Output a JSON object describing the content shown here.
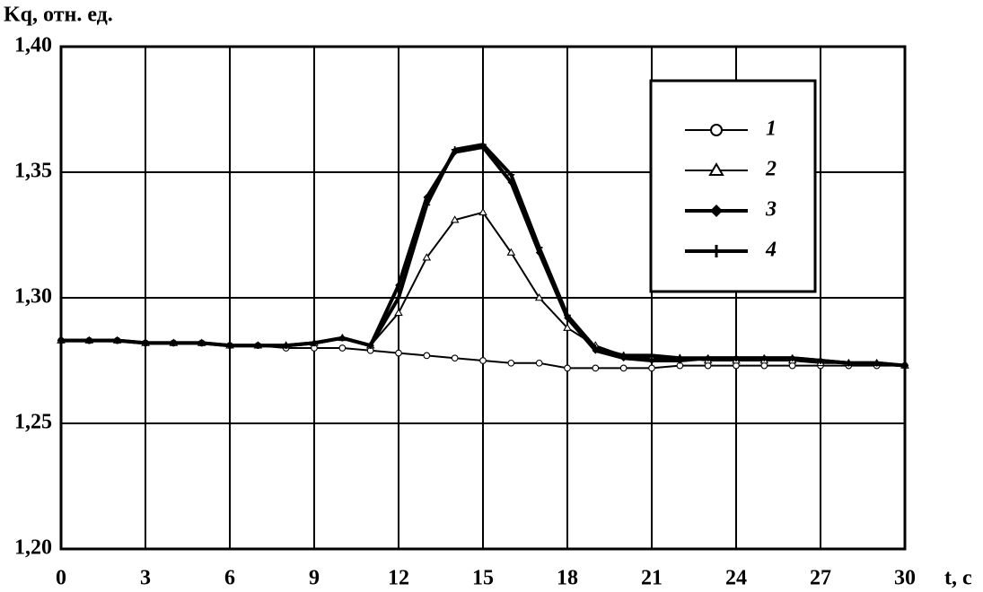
{
  "chart_data": {
    "type": "line",
    "y_label": "Kq, отн. ед.",
    "x_label": "t, c",
    "x": [
      0,
      1,
      2,
      3,
      4,
      5,
      6,
      7,
      8,
      9,
      10,
      11,
      12,
      13,
      14,
      15,
      16,
      17,
      18,
      19,
      20,
      21,
      22,
      23,
      24,
      25,
      26,
      27,
      28,
      29,
      30
    ],
    "xlim": [
      0,
      30
    ],
    "xticks": [
      0,
      3,
      6,
      9,
      12,
      15,
      18,
      21,
      24,
      27,
      30
    ],
    "ylim": [
      1.2,
      1.4
    ],
    "yticks": [
      {
        "value": 1.2,
        "label": "1,20"
      },
      {
        "value": 1.25,
        "label": "1,25"
      },
      {
        "value": 1.3,
        "label": "1,30"
      },
      {
        "value": 1.35,
        "label": "1,35"
      },
      {
        "value": 1.4,
        "label": "1,40"
      }
    ],
    "grid": true,
    "legend": "upper right",
    "series": [
      {
        "name": "1",
        "color": "#000000",
        "marker": "circle",
        "line_width": 2,
        "values": [
          1.283,
          1.283,
          1.283,
          1.282,
          1.282,
          1.282,
          1.281,
          1.281,
          1.28,
          1.28,
          1.28,
          1.279,
          1.278,
          1.277,
          1.276,
          1.275,
          1.274,
          1.274,
          1.272,
          1.272,
          1.272,
          1.272,
          1.273,
          1.273,
          1.273,
          1.273,
          1.273,
          1.273,
          1.273,
          1.273,
          1.273
        ]
      },
      {
        "name": "2",
        "color": "#000000",
        "marker": "triangle",
        "line_width": 2,
        "values": [
          1.283,
          1.283,
          1.283,
          1.282,
          1.282,
          1.282,
          1.281,
          1.281,
          1.281,
          1.282,
          1.284,
          1.281,
          1.294,
          1.316,
          1.331,
          1.334,
          1.318,
          1.3,
          1.288,
          1.281,
          1.277,
          1.276,
          1.276,
          1.275,
          1.275,
          1.275,
          1.275,
          1.274,
          1.274,
          1.274,
          1.273
        ]
      },
      {
        "name": "3",
        "color": "#000000",
        "marker": "diamond",
        "line_width": 4,
        "values": [
          1.283,
          1.283,
          1.283,
          1.282,
          1.282,
          1.282,
          1.281,
          1.281,
          1.281,
          1.282,
          1.284,
          1.281,
          1.305,
          1.34,
          1.358,
          1.36,
          1.346,
          1.318,
          1.292,
          1.279,
          1.276,
          1.275,
          1.275,
          1.276,
          1.276,
          1.276,
          1.276,
          1.275,
          1.274,
          1.274,
          1.273
        ]
      },
      {
        "name": "4",
        "color": "#000000",
        "marker": "plus",
        "line_width": 4,
        "values": [
          1.283,
          1.283,
          1.283,
          1.282,
          1.282,
          1.282,
          1.281,
          1.281,
          1.281,
          1.282,
          1.284,
          1.281,
          1.3,
          1.337,
          1.359,
          1.361,
          1.349,
          1.32,
          1.293,
          1.28,
          1.277,
          1.277,
          1.276,
          1.276,
          1.276,
          1.276,
          1.276,
          1.275,
          1.274,
          1.274,
          1.273
        ]
      }
    ]
  }
}
